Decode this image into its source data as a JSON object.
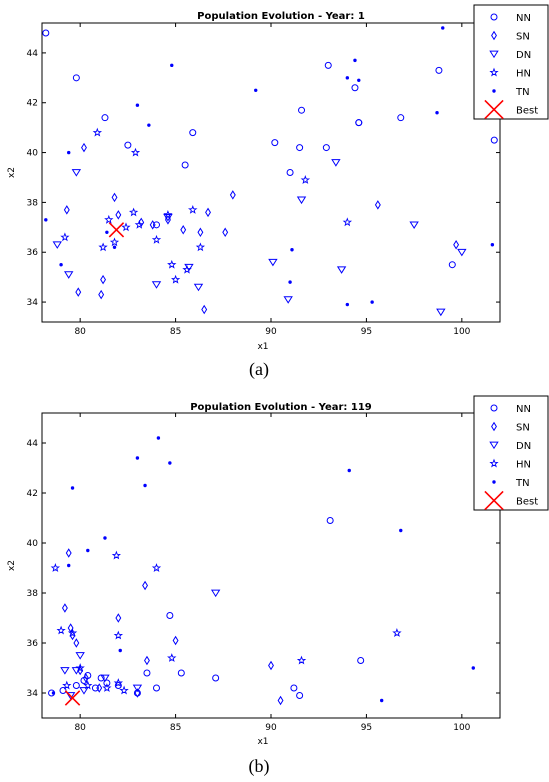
{
  "chart_data": [
    {
      "type": "scatter",
      "title": "Population Evolution - Year: 1",
      "xlabel": "x1",
      "ylabel": "x2",
      "xlim": [
        78,
        102
      ],
      "ylim": [
        33.2,
        45.2
      ],
      "xticks": [
        80,
        85,
        90,
        95,
        100
      ],
      "yticks": [
        34,
        36,
        38,
        40,
        42,
        44
      ],
      "caption": "(a)",
      "legend_position": "top-right-outside",
      "series": [
        {
          "name": "NN",
          "marker": "circle",
          "color": "#0000ff",
          "x": [
            78.2,
            79.8,
            81.3,
            82.5,
            84.0,
            85.5,
            85.9,
            90.2,
            91.0,
            91.5,
            91.6,
            92.9,
            93.0,
            94.4,
            94.6,
            94.6,
            96.8,
            98.8,
            99.5,
            101.5,
            101.7
          ],
          "y": [
            44.8,
            43.0,
            41.4,
            40.3,
            37.1,
            39.5,
            40.8,
            40.4,
            39.2,
            40.2,
            41.7,
            40.2,
            43.5,
            42.6,
            41.2,
            41.2,
            41.4,
            43.3,
            35.5,
            43.1,
            40.5
          ]
        },
        {
          "name": "SN",
          "marker": "diamond",
          "color": "#0000ff",
          "x": [
            79.3,
            79.9,
            80.2,
            81.1,
            81.2,
            81.8,
            82.0,
            83.2,
            83.8,
            84.6,
            85.4,
            86.3,
            86.5,
            86.7,
            87.6,
            88.0,
            95.6,
            99.7
          ],
          "y": [
            37.7,
            34.4,
            40.2,
            34.3,
            34.9,
            38.2,
            37.5,
            37.2,
            37.1,
            37.3,
            36.9,
            36.8,
            33.7,
            37.6,
            36.8,
            38.3,
            37.9,
            36.3
          ]
        },
        {
          "name": "DN",
          "marker": "triangle-down",
          "color": "#0000ff",
          "x": [
            78.8,
            79.4,
            79.8,
            84.0,
            84.6,
            85.7,
            86.2,
            90.1,
            90.9,
            91.6,
            93.4,
            93.7,
            97.5,
            98.9,
            100.0
          ],
          "y": [
            36.3,
            35.1,
            39.2,
            34.7,
            37.4,
            35.4,
            34.6,
            35.6,
            34.1,
            38.1,
            39.6,
            35.3,
            37.1,
            33.6,
            36.0
          ]
        },
        {
          "name": "HN",
          "marker": "pentagram",
          "color": "#0000ff",
          "x": [
            79.2,
            80.9,
            81.2,
            81.5,
            81.8,
            82.4,
            82.8,
            82.9,
            83.1,
            84.0,
            84.6,
            84.8,
            85.0,
            85.6,
            85.9,
            86.3,
            91.8,
            94.0
          ],
          "y": [
            36.6,
            40.8,
            36.2,
            37.3,
            36.4,
            37.0,
            37.6,
            40.0,
            37.1,
            36.5,
            37.5,
            35.5,
            34.9,
            35.3,
            37.7,
            36.2,
            38.9,
            37.2
          ]
        },
        {
          "name": "TN",
          "marker": "point",
          "color": "#0000ff",
          "x": [
            78.2,
            79.0,
            79.4,
            81.4,
            81.8,
            83.0,
            83.6,
            84.8,
            89.2,
            91.0,
            91.1,
            94.0,
            94.0,
            94.4,
            94.6,
            95.3,
            98.7,
            99.0,
            101.6
          ],
          "y": [
            37.3,
            35.5,
            40.0,
            36.8,
            36.2,
            41.9,
            41.1,
            43.5,
            42.5,
            34.8,
            36.1,
            43.0,
            33.9,
            43.7,
            42.9,
            34.0,
            41.6,
            45.0,
            36.3
          ]
        },
        {
          "name": "Best",
          "marker": "x",
          "color": "#ff0000",
          "x": [
            81.9
          ],
          "y": [
            36.9
          ]
        }
      ]
    },
    {
      "type": "scatter",
      "title": "Population Evolution - Year: 119",
      "xlabel": "x1",
      "ylabel": "x2",
      "xlim": [
        78,
        102
      ],
      "ylim": [
        33.0,
        45.2
      ],
      "xticks": [
        80,
        85,
        90,
        95,
        100
      ],
      "yticks": [
        34,
        36,
        38,
        40,
        42,
        44
      ],
      "caption": "(b)",
      "legend_position": "top-right-outside",
      "series": [
        {
          "name": "NN",
          "marker": "circle",
          "color": "#0000ff",
          "x": [
            78.5,
            79.1,
            79.8,
            80.2,
            80.4,
            80.8,
            81.1,
            81.4,
            82.0,
            83.0,
            83.5,
            84.0,
            84.7,
            85.3,
            87.1,
            91.2,
            91.5,
            93.1,
            94.7
          ],
          "y": [
            34.0,
            34.1,
            34.3,
            34.5,
            34.7,
            34.2,
            34.6,
            34.4,
            34.3,
            34.0,
            34.8,
            34.2,
            37.1,
            34.8,
            34.6,
            34.2,
            33.9,
            40.9,
            35.3
          ]
        },
        {
          "name": "SN",
          "marker": "diamond",
          "color": "#0000ff",
          "x": [
            79.2,
            79.4,
            79.5,
            79.6,
            79.8,
            80.0,
            80.3,
            81.0,
            82.0,
            83.0,
            83.4,
            83.5,
            85.0,
            90.0,
            90.5
          ],
          "y": [
            37.4,
            39.6,
            36.6,
            36.3,
            36.0,
            34.9,
            34.6,
            34.2,
            37.0,
            34.0,
            38.3,
            35.3,
            36.1,
            35.1,
            33.7
          ]
        },
        {
          "name": "DN",
          "marker": "triangle-down",
          "color": "#0000ff",
          "x": [
            79.2,
            79.5,
            79.8,
            80.0,
            80.2,
            81.3,
            83.0,
            87.1
          ],
          "y": [
            34.9,
            33.9,
            34.9,
            35.5,
            34.1,
            34.6,
            34.2,
            38.0
          ],
          "y_note": ""
        },
        {
          "name": "HN",
          "marker": "pentagram",
          "color": "#0000ff",
          "x": [
            78.7,
            79.0,
            79.3,
            79.6,
            80.0,
            80.4,
            81.4,
            81.9,
            82.0,
            82.0,
            82.3,
            84.0,
            84.8,
            91.6,
            96.6
          ],
          "y": [
            39.0,
            36.5,
            34.3,
            36.4,
            35.0,
            34.3,
            34.2,
            39.5,
            36.3,
            34.4,
            34.1,
            39.0,
            35.4,
            35.3,
            36.4
          ]
        },
        {
          "name": "TN",
          "marker": "point",
          "color": "#0000ff",
          "x": [
            78.6,
            79.4,
            79.6,
            80.4,
            81.3,
            82.1,
            83.0,
            83.4,
            84.1,
            84.7,
            94.1,
            95.8,
            96.8,
            100.6
          ],
          "y": [
            34.0,
            39.1,
            42.2,
            39.7,
            40.2,
            35.7,
            43.4,
            42.3,
            44.2,
            43.2,
            42.9,
            33.7,
            40.5,
            35.0
          ]
        },
        {
          "name": "Best",
          "marker": "x",
          "color": "#ff0000",
          "x": [
            79.6
          ],
          "y": [
            33.8
          ]
        }
      ]
    }
  ]
}
